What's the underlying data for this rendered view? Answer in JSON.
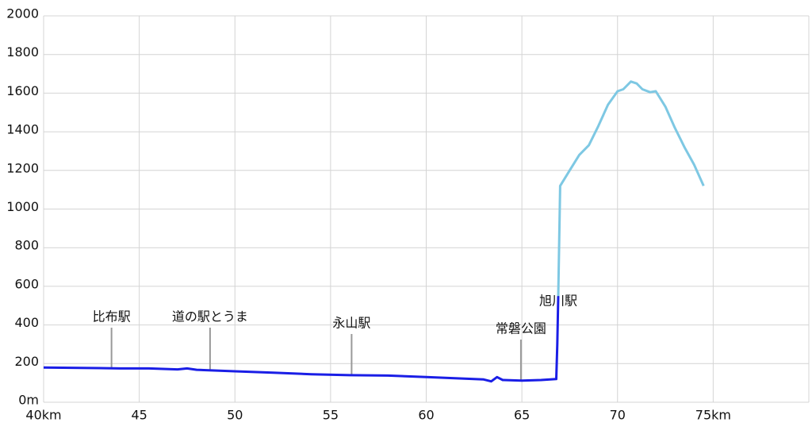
{
  "chart_data": {
    "type": "line",
    "xlim": [
      40,
      80
    ],
    "ylim": [
      0,
      2000
    ],
    "xticks": [
      {
        "value": 40,
        "label": "40km"
      },
      45,
      50,
      55,
      60,
      65,
      70,
      {
        "value": 75,
        "label": "75km"
      }
    ],
    "yticks": [
      {
        "value": 0,
        "label": "0m"
      },
      200,
      400,
      600,
      800,
      1000,
      1200,
      1400,
      1600,
      1800,
      2000
    ],
    "grid": true,
    "series": [
      {
        "color": "#1a1ee6",
        "x": [
          40,
          42,
          44,
          45.5,
          47,
          47.5,
          48,
          50,
          52,
          54,
          56,
          58,
          60,
          62,
          63,
          63.4,
          63.7,
          64,
          65,
          66,
          66.8,
          66.85,
          66.9
        ],
        "values": [
          180,
          178,
          175,
          175,
          170,
          175,
          168,
          160,
          153,
          145,
          140,
          138,
          130,
          122,
          118,
          108,
          130,
          115,
          112,
          115,
          120,
          300,
          550
        ]
      },
      {
        "color": "#7ec8e3",
        "x": [
          66.9,
          67,
          67.5,
          68,
          68.5,
          69,
          69.5,
          70,
          70.3,
          70.7,
          71,
          71.3,
          71.7,
          72,
          72.5,
          73,
          73.5,
          74,
          74.5
        ],
        "values": [
          550,
          1120,
          1200,
          1280,
          1330,
          1430,
          1540,
          1610,
          1620,
          1660,
          1650,
          1620,
          1605,
          1610,
          1530,
          1420,
          1320,
          1230,
          1120
        ]
      }
    ],
    "annotations": [
      {
        "text": "比布駅",
        "x": 43.55
      },
      {
        "text": "道の駅とうま",
        "x": 48.7
      },
      {
        "text": "永山駅",
        "x": 56.1
      },
      {
        "text": "常磐公園",
        "x": 64.95
      },
      {
        "text": "旭川駅",
        "x": 66.9
      }
    ]
  }
}
